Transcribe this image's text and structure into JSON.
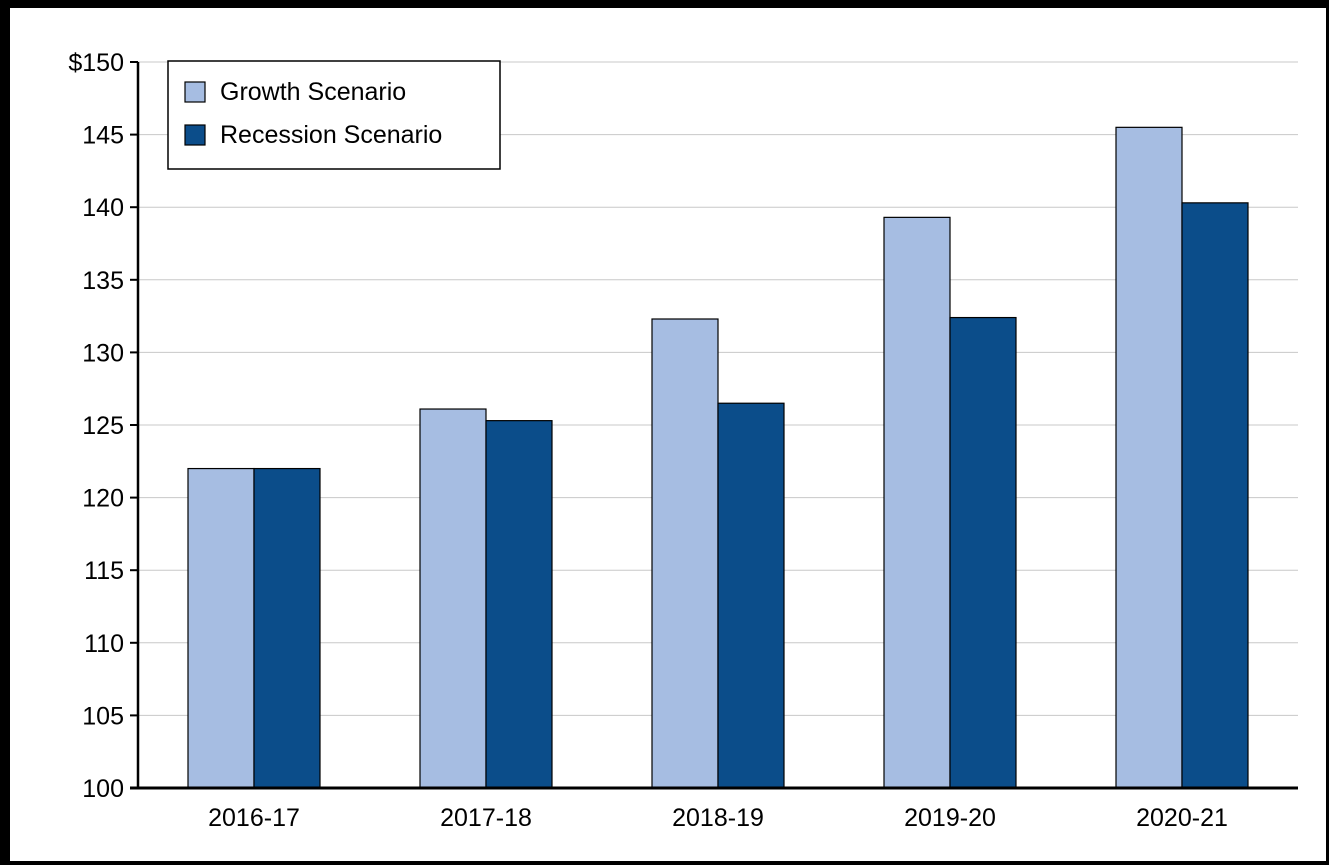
{
  "chart_data": {
    "type": "bar",
    "categories": [
      "2016-17",
      "2017-18",
      "2018-19",
      "2019-20",
      "2020-21"
    ],
    "series": [
      {
        "name": "Growth Scenario",
        "color": "#a6bde2",
        "values": [
          122.0,
          126.1,
          132.3,
          139.3,
          145.5
        ]
      },
      {
        "name": "Recession Scenario",
        "color": "#0b4d8a",
        "values": [
          122.0,
          125.3,
          126.5,
          132.4,
          140.3
        ]
      }
    ],
    "title": "",
    "xlabel": "",
    "ylabel": "",
    "ylim": [
      100,
      150
    ],
    "yticks": [
      "100",
      "105",
      "110",
      "115",
      "120",
      "125",
      "130",
      "135",
      "140",
      "145",
      "$150"
    ],
    "grid": true,
    "legend_position": "top-left"
  }
}
